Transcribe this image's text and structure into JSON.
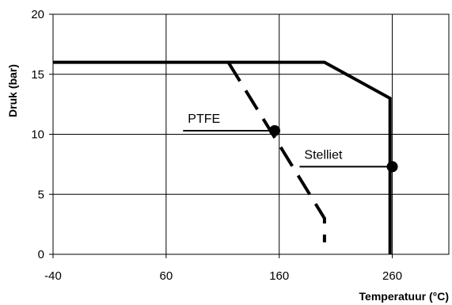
{
  "chart_data": {
    "type": "line",
    "xlabel": "Temperatuur (°C)",
    "ylabel": "Druk (bar)",
    "xlim": [
      -40,
      310
    ],
    "ylim": [
      0,
      20
    ],
    "x_ticks": [
      -40,
      60,
      160,
      260
    ],
    "y_ticks": [
      0,
      5,
      10,
      15,
      20
    ],
    "grid": true,
    "series": [
      {
        "name": "",
        "style": "solid",
        "points": [
          [
            -40,
            16
          ],
          [
            200,
            16
          ],
          [
            258,
            13
          ],
          [
            258,
            0
          ]
        ]
      },
      {
        "name": "",
        "style": "dashed",
        "points": [
          [
            115,
            16
          ],
          [
            200,
            3
          ],
          [
            200,
            1
          ]
        ]
      }
    ],
    "annotations": [
      {
        "label": "PTFE",
        "point": [
          156,
          10.3
        ],
        "line_from_x": 75
      },
      {
        "label": "Stelliet",
        "point": [
          260,
          7.3
        ],
        "line_from_x": 178
      }
    ]
  }
}
